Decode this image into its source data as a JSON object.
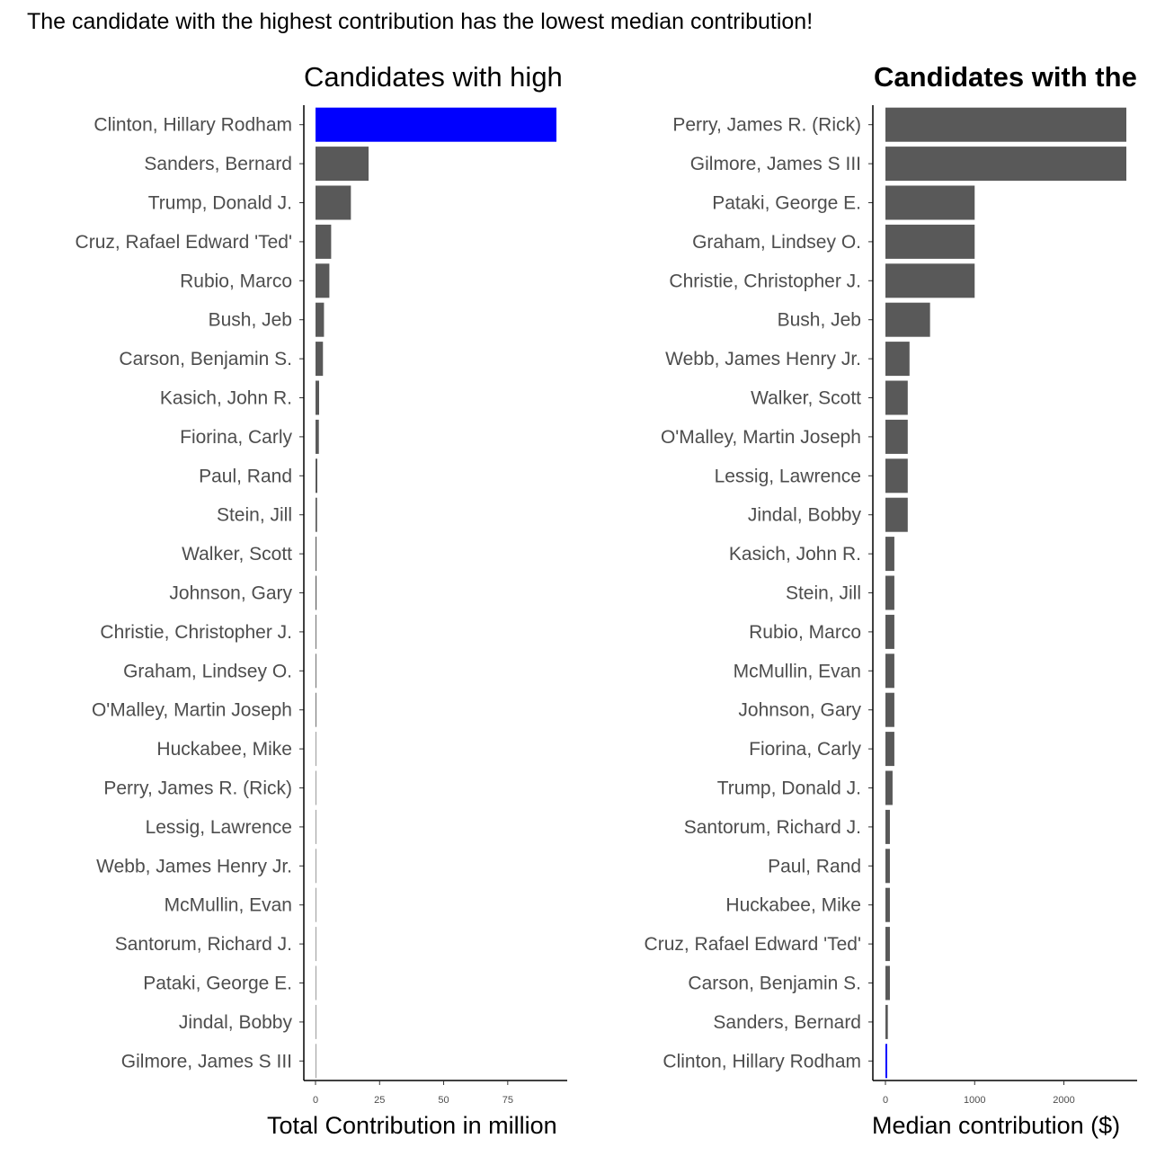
{
  "page": {
    "title": "The candidate with the highest contribution has the lowest median contribution!"
  },
  "colors": {
    "bar": "#595959",
    "highlight": "#0000ff",
    "axis": "#000000",
    "tick": "#333333",
    "label": "#4d4d4d"
  },
  "chart_data": [
    {
      "type": "bar",
      "orientation": "horizontal",
      "title": "Candidates with high",
      "xlabel": "Total Contribution in million",
      "ylabel": "",
      "xlim": [
        0,
        94
      ],
      "x_ticks": [
        0,
        25,
        50,
        75
      ],
      "highlight": "Clinton, Hillary Rodham",
      "categories": [
        "Clinton, Hillary Rodham",
        "Sanders, Bernard",
        "Trump, Donald J.",
        "Cruz, Rafael Edward 'Ted'",
        "Rubio, Marco",
        "Bush, Jeb",
        "Carson, Benjamin S.",
        "Kasich, John R.",
        "Fiorina, Carly",
        "Paul, Rand",
        "Stein, Jill",
        "Walker, Scott",
        "Johnson, Gary",
        "Christie, Christopher J.",
        "Graham, Lindsey O.",
        "O'Malley, Martin Joseph",
        "Huckabee, Mike",
        "Perry, James R. (Rick)",
        "Lessig, Lawrence",
        "Webb, James Henry Jr.",
        "McMullin, Evan",
        "Santorum, Richard J.",
        "Pataki, George E.",
        "Jindal, Bobby",
        "Gilmore, James S III"
      ],
      "values": [
        94.0,
        20.7,
        13.8,
        6.1,
        5.4,
        3.3,
        2.9,
        1.4,
        1.3,
        0.7,
        0.6,
        0.4,
        0.4,
        0.3,
        0.3,
        0.3,
        0.2,
        0.2,
        0.15,
        0.03,
        0.03,
        0.03,
        0.02,
        0.02,
        0.01
      ]
    },
    {
      "type": "bar",
      "orientation": "horizontal",
      "title": "Candidates with the",
      "xlabel": "Median contribution ($)",
      "ylabel": "",
      "xlim": [
        0,
        2700
      ],
      "x_ticks": [
        0,
        1000,
        2000
      ],
      "highlight": "Clinton, Hillary Rodham",
      "categories": [
        "Perry, James R. (Rick)",
        "Gilmore, James S III",
        "Pataki, George E.",
        "Graham, Lindsey O.",
        "Christie, Christopher J.",
        "Bush, Jeb",
        "Webb, James Henry Jr.",
        "Walker, Scott",
        "O'Malley, Martin Joseph",
        "Lessig, Lawrence",
        "Jindal, Bobby",
        "Kasich, John R.",
        "Stein, Jill",
        "Rubio, Marco",
        "McMullin, Evan",
        "Johnson, Gary",
        "Fiorina, Carly",
        "Trump, Donald J.",
        "Santorum, Richard J.",
        "Paul, Rand",
        "Huckabee, Mike",
        "Cruz, Rafael Edward 'Ted'",
        "Carson, Benjamin S.",
        "Sanders, Bernard",
        "Clinton, Hillary Rodham"
      ],
      "values": [
        2700,
        2700,
        1000,
        1000,
        1000,
        500,
        270,
        250,
        250,
        250,
        250,
        100,
        100,
        100,
        100,
        100,
        100,
        80,
        50,
        50,
        50,
        50,
        50,
        27,
        20
      ]
    }
  ]
}
